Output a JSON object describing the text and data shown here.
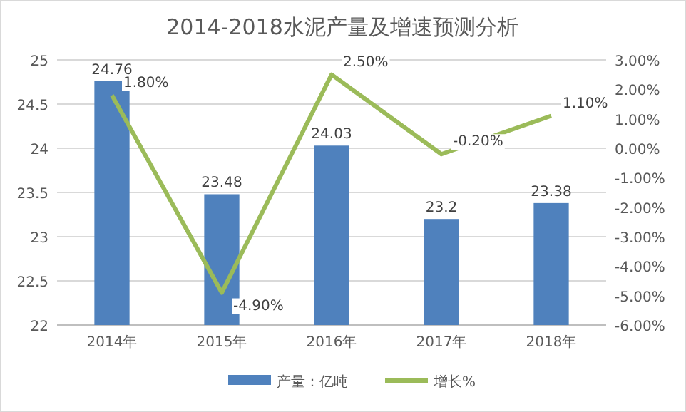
{
  "chart_data": {
    "type": "bar",
    "title": "2014-2018水泥产量及增速预测分析",
    "categories": [
      "2014年",
      "2015年",
      "2016年",
      "2017年",
      "2018年"
    ],
    "series": [
      {
        "name": "产量：亿吨",
        "color": "#4f81bd",
        "values": [
          24.76,
          23.48,
          24.03,
          23.2,
          23.38
        ],
        "value_labels": [
          "24.76",
          "23.48",
          "24.03",
          "23.2",
          "23.38"
        ]
      },
      {
        "name": "增长%",
        "type": "line",
        "axis": "y2",
        "color": "#9bbb59",
        "values": [
          1.8,
          -4.9,
          2.5,
          -0.2,
          1.1
        ],
        "value_labels": [
          "1.80%",
          "-4.90%",
          "2.50%",
          "-0.20%",
          "1.10%"
        ]
      }
    ],
    "ylim": [
      22,
      25
    ],
    "yticks": [
      22,
      22.5,
      23,
      23.5,
      24,
      24.5,
      25
    ],
    "y2lim": [
      -6,
      3
    ],
    "y2ticks": [
      {
        "value": 3,
        "label": "3.00%"
      },
      {
        "value": 2,
        "label": "2.00%"
      },
      {
        "value": 1,
        "label": "1.00%"
      },
      {
        "value": 0,
        "label": "0.00%"
      },
      {
        "value": -1,
        "label": "-1.00%"
      },
      {
        "value": -2,
        "label": "-2.00%"
      },
      {
        "value": -3,
        "label": "-3.00%"
      },
      {
        "value": -4,
        "label": "-4.00%"
      },
      {
        "value": -5,
        "label": "-5.00%"
      },
      {
        "value": -6,
        "label": "-6.00%"
      }
    ],
    "grid": "y",
    "legend": "bottom"
  }
}
